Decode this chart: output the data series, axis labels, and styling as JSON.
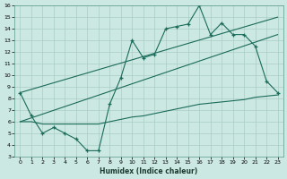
{
  "xlabel": "Humidex (Indice chaleur)",
  "x_values": [
    0,
    1,
    2,
    3,
    4,
    5,
    6,
    7,
    8,
    9,
    10,
    11,
    12,
    13,
    14,
    15,
    16,
    17,
    18,
    19,
    20,
    21,
    22,
    23
  ],
  "line_main": [
    8.5,
    6.5,
    5.0,
    5.5,
    5.0,
    4.5,
    3.5,
    3.5,
    7.5,
    9.8,
    13.0,
    11.5,
    11.8,
    14.0,
    14.2,
    14.4,
    16.0,
    13.5,
    14.5,
    13.5,
    13.5,
    12.5,
    9.5,
    8.5
  ],
  "line_diag_high": [
    [
      0,
      8.5
    ],
    [
      23,
      15.0
    ]
  ],
  "line_diag_low": [
    [
      0,
      6.0
    ],
    [
      23,
      13.5
    ]
  ],
  "line_base": [
    6.0,
    6.0,
    5.8,
    5.8,
    5.8,
    5.8,
    5.8,
    5.8,
    6.0,
    6.2,
    6.4,
    6.5,
    6.7,
    6.9,
    7.1,
    7.3,
    7.5,
    7.6,
    7.7,
    7.8,
    7.9,
    8.1,
    8.2,
    8.3
  ],
  "bg_color": "#cce8e2",
  "line_color": "#1a6b5a",
  "grid_color": "#aaccc6",
  "ylim": [
    3,
    16
  ],
  "xlim": [
    -0.5,
    23.5
  ],
  "yticks": [
    3,
    4,
    5,
    6,
    7,
    8,
    9,
    10,
    11,
    12,
    13,
    14,
    15,
    16
  ],
  "xticks": [
    0,
    1,
    2,
    3,
    4,
    5,
    6,
    7,
    8,
    9,
    10,
    11,
    12,
    13,
    14,
    15,
    16,
    17,
    18,
    19,
    20,
    21,
    22,
    23
  ]
}
